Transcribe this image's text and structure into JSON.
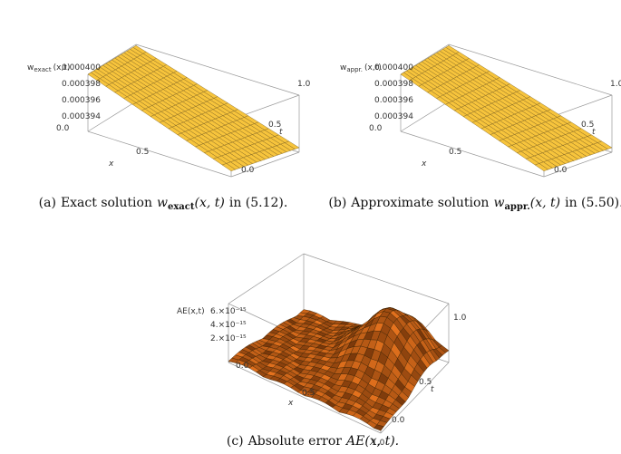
{
  "panels": [
    {
      "caption": [
        {
          "text": "(a)",
          "style": "roman"
        },
        {
          "text": "Exact solution",
          "style": "roman"
        },
        {
          "text": "w",
          "style": "italic"
        },
        {
          "text": "exact",
          "style": "sub"
        },
        {
          "text": "(x, t)",
          "style": "italic"
        },
        {
          "text": "in (5.12).",
          "style": "roman"
        }
      ],
      "z_label": [
        {
          "text": "w",
          "style": "main"
        },
        {
          "text": "exact",
          "style": "sub"
        },
        {
          "text": "(x,t)",
          "style": "main"
        }
      ],
      "z_ticks": [
        "0.000400",
        "0.000398",
        "0.000396",
        "0.000394"
      ],
      "x_label": "x",
      "x_ticks": [
        "0.0",
        "0.5"
      ],
      "t_label": "t",
      "t_ticks": [
        "0.0",
        "0.5",
        "1.0"
      ]
    },
    {
      "caption": [
        {
          "text": "(b)",
          "style": "roman"
        },
        {
          "text": "Approximate solution",
          "style": "roman"
        },
        {
          "text": "w",
          "style": "italic"
        },
        {
          "text": "appr.",
          "style": "sub"
        },
        {
          "text": "(x, t)",
          "style": "italic"
        },
        {
          "text": "in (5.50).",
          "style": "roman"
        }
      ],
      "z_label": [
        {
          "text": "w",
          "style": "main"
        },
        {
          "text": "appr.",
          "style": "sub"
        },
        {
          "text": "(x,t)",
          "style": "main"
        }
      ],
      "z_ticks": [
        "0.000400",
        "0.000398",
        "0.000396",
        "0.000394"
      ],
      "x_label": "x",
      "x_ticks": [
        "0.0",
        "0.5"
      ],
      "t_label": "t",
      "t_ticks": [
        "0.0",
        "0.5",
        "1.0"
      ]
    },
    {
      "caption": [
        {
          "text": "(c)",
          "style": "roman"
        },
        {
          "text": "Absolute error",
          "style": "roman"
        },
        {
          "text": "AE",
          "style": "italic"
        },
        {
          "text": "(x, t).",
          "style": "italic"
        }
      ],
      "z_label": [
        {
          "text": "AE(x,t)",
          "style": "main"
        }
      ],
      "z_ticks": [
        "6.×10⁻¹⁵",
        "4.×10⁻¹⁵",
        "2.×10⁻¹⁵"
      ],
      "x_label": "x",
      "x_ticks": [
        "0.0",
        "0.5",
        "1.0"
      ],
      "t_label": "t",
      "t_ticks": [
        "0.0",
        "0.5",
        "1.0"
      ]
    }
  ]
}
